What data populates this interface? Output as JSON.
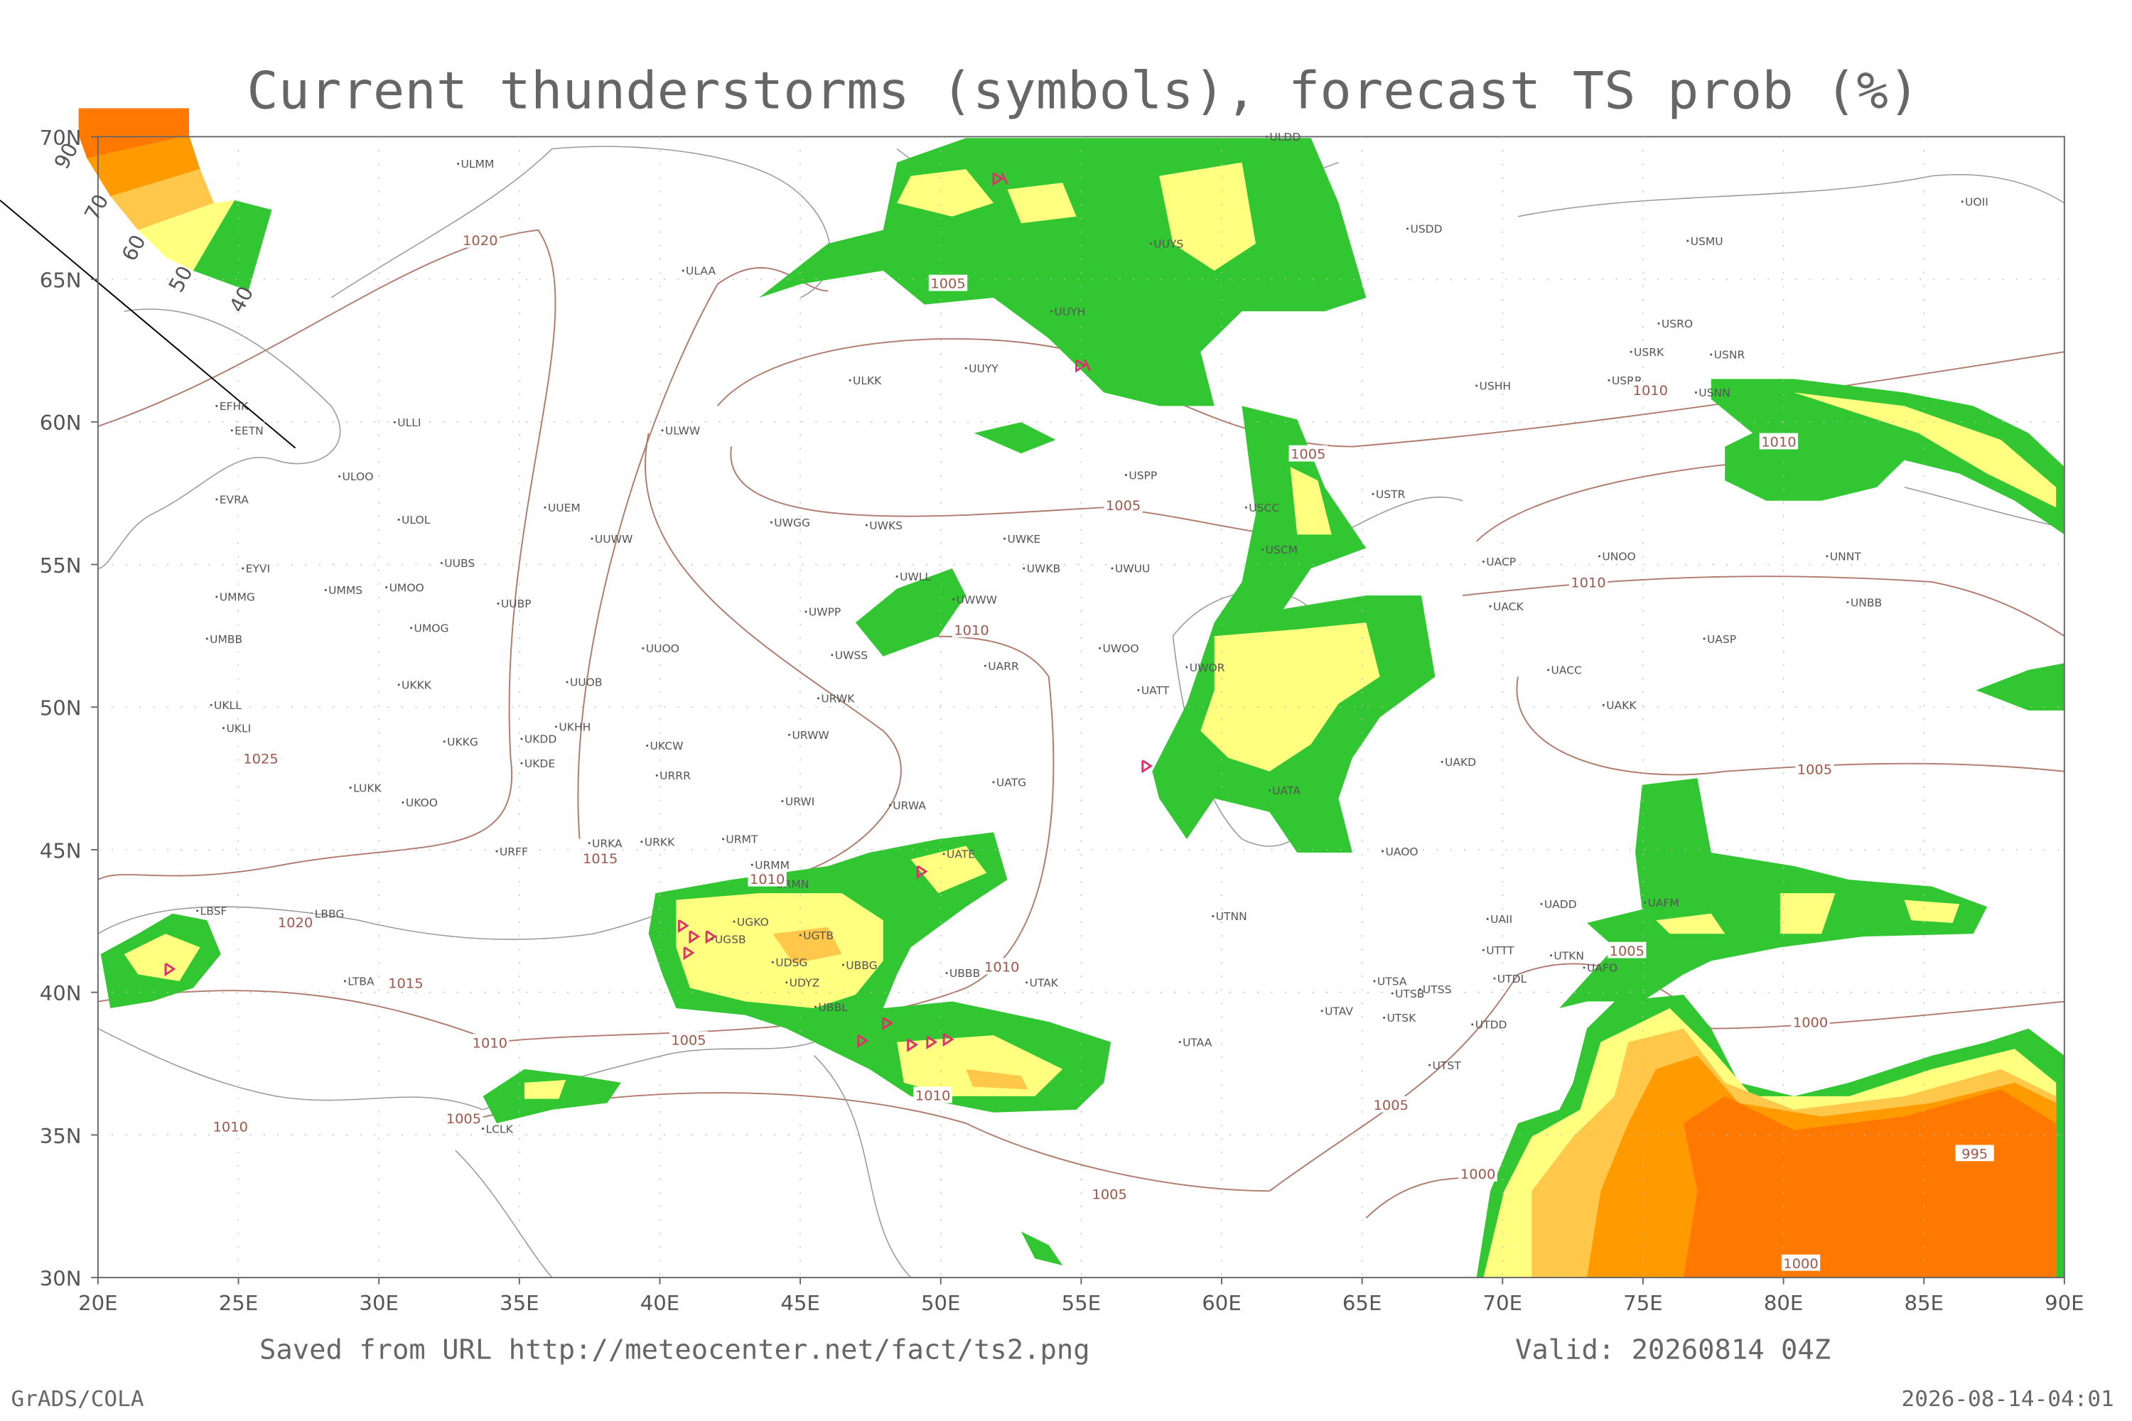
{
  "header": {
    "title": "Current thunderstorms (symbols), forecast TS prob (%)"
  },
  "legend": {
    "labels": [
      "90",
      "70",
      "60",
      "50",
      "40"
    ]
  },
  "axes": {
    "lon_labels": [
      "20E",
      "25E",
      "30E",
      "35E",
      "40E",
      "45E",
      "50E",
      "55E",
      "60E",
      "65E",
      "70E",
      "75E",
      "80E",
      "85E",
      "90E"
    ],
    "lat_labels": [
      "30N",
      "35N",
      "40N",
      "45N",
      "50N",
      "55N",
      "60N",
      "65N",
      "70N"
    ]
  },
  "stations": [
    "ULMM",
    "ULAA",
    "ULLI",
    "ULOO",
    "EFHK",
    "EETN",
    "EVRA",
    "ULOL",
    "UUEM",
    "UUWW",
    "UUBS",
    "EYVI",
    "UMMG",
    "UMMS",
    "UMOO",
    "UUBP",
    "UMOG",
    "UMBB",
    "UUOO",
    "UUOB",
    "UKKK",
    "UKLL",
    "UKLI",
    "UKHH",
    "UKKG",
    "UKDD",
    "UKDE",
    "UKCW",
    "URRR",
    "LUKK",
    "UKOO",
    "URFF",
    "URKA",
    "URKK",
    "URMT",
    "URMM",
    "URMN",
    "UGKO",
    "UGSB",
    "UGTB",
    "UDSG",
    "UBBG",
    "UDYZ",
    "UBBL",
    "LBSF",
    "LBBG",
    "LTBA",
    "LCLK",
    "ULKK",
    "UUYY",
    "UUYH",
    "UUYS",
    "ULDD",
    "ULWW",
    "UWGG",
    "UWKS",
    "UWKE",
    "UWLL",
    "UWWW",
    "UWKB",
    "UWUU",
    "UWPP",
    "UWSS",
    "UARR",
    "UWOO",
    "UWOR",
    "UATT",
    "URWK",
    "URWW",
    "URWI",
    "URWA",
    "UATG",
    "UATA",
    "USPP",
    "USCC",
    "USCM",
    "USDD",
    "USMU",
    "USRO",
    "USRK",
    "USNR",
    "USRR",
    "USHH",
    "USNN",
    "USTR",
    "UACP",
    "UNOO",
    "UNNT",
    "UACK",
    "UNBB",
    "UASP",
    "UACC",
    "UAKK",
    "UAKD",
    "UAOO",
    "UAII",
    "UADD",
    "UAFM",
    "UTTT",
    "UTKN",
    "UAFO",
    "UTDL",
    "UTSA",
    "UTSB",
    "UTSS",
    "UTAV",
    "UTSK",
    "UTDD",
    "UTST",
    "UTNN",
    "UTAA",
    "UTAK",
    "UBBB",
    "UATE",
    "UOII"
  ],
  "isobar_labels": [
    "1020",
    "1005",
    "1010",
    "1010",
    "1005",
    "1005",
    "1010",
    "1010",
    "1025",
    "1015",
    "1010",
    "1020",
    "1015",
    "1010",
    "1005",
    "1005",
    "1010",
    "1005",
    "1000",
    "1005",
    "1010",
    "1010",
    "1005",
    "1005",
    "1000",
    "995",
    "1000"
  ],
  "footer": {
    "source": "Saved from URL http://meteocenter.net/fact/ts2.png",
    "valid": "Valid: 20260814 04Z",
    "software": "GrADS/COLA",
    "timestamp": "2026-08-14-04:01"
  }
}
